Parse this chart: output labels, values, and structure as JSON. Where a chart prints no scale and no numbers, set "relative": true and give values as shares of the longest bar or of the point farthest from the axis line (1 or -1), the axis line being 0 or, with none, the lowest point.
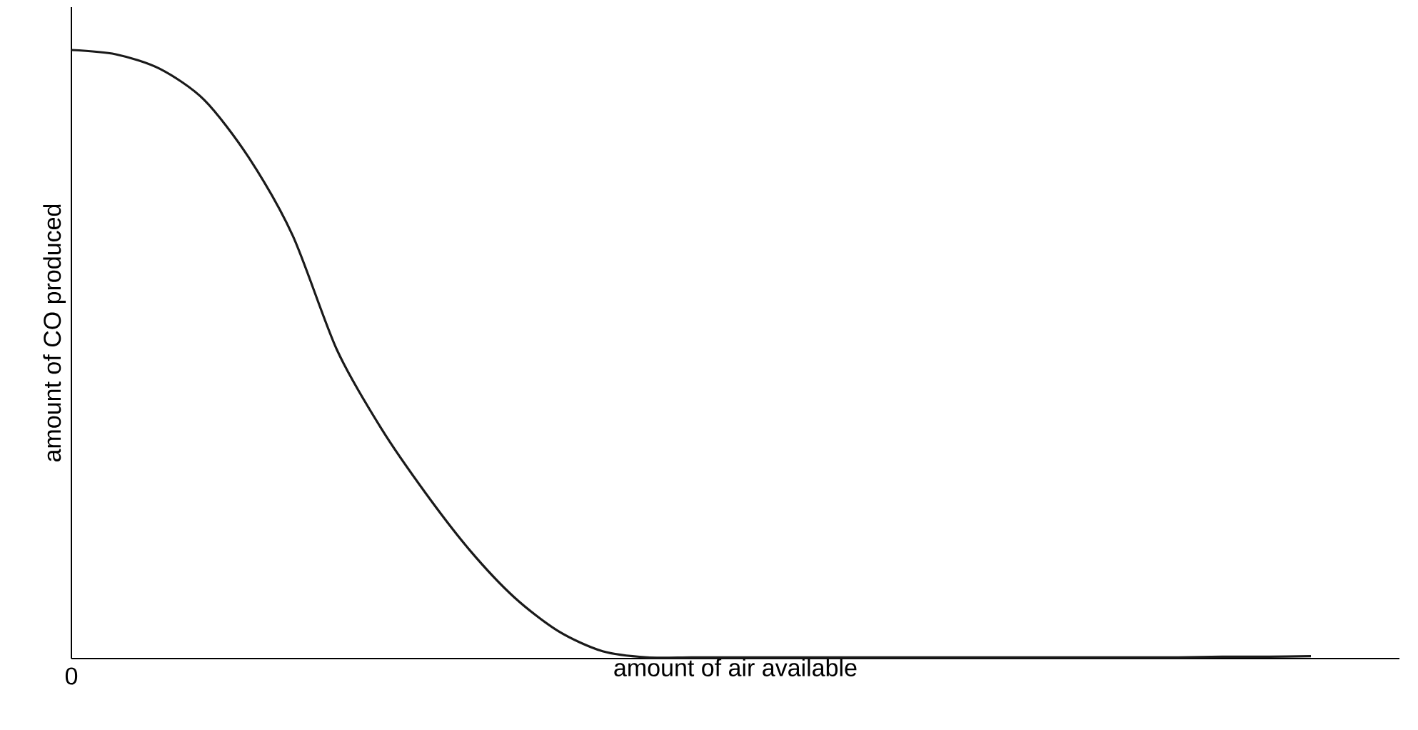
{
  "chart_data": {
    "type": "line",
    "relative": true,
    "xlabel": "amount of air available",
    "ylabel": "amount of CO produced",
    "annotations": [
      "0"
    ],
    "marker": "none",
    "color": "#1a1a1a",
    "categories": [
      null,
      null,
      null,
      null,
      null,
      null,
      null,
      null,
      null,
      null,
      null,
      null,
      null,
      null,
      null,
      null,
      null,
      null,
      null,
      null,
      null,
      null,
      null,
      null,
      null,
      null,
      null,
      null,
      null
    ],
    "values": [
      1.0,
      0.993,
      0.969,
      0.918,
      0.824,
      0.695,
      0.507,
      0.378,
      0.272,
      0.178,
      0.101,
      0.045,
      0.012,
      0.002,
      0.002,
      0.002,
      0.002,
      0.002,
      0.002,
      0.002,
      0.002,
      0.002,
      0.002,
      0.002,
      0.002,
      0.002,
      0.003,
      0.003,
      0.004
    ]
  }
}
